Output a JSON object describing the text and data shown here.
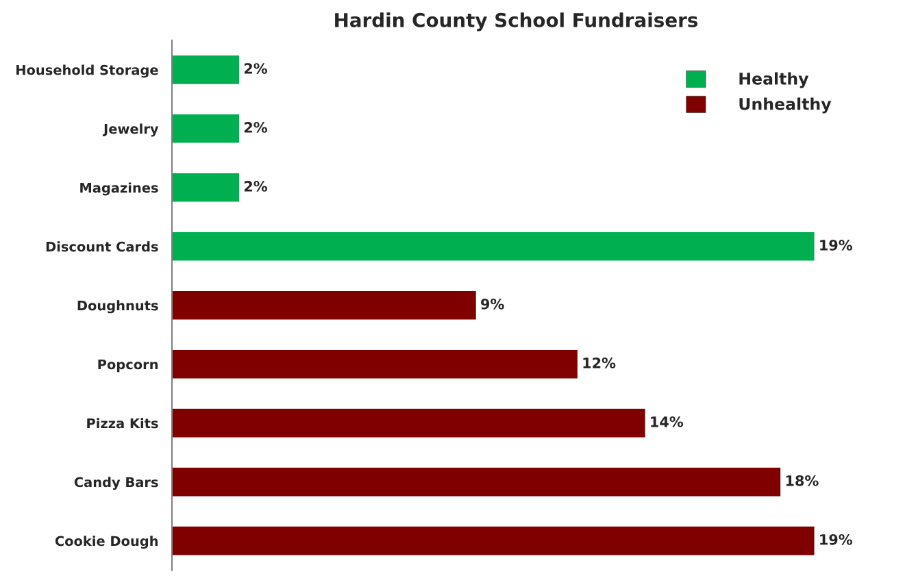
{
  "chart_data": {
    "type": "bar",
    "title": "Hardin County School Fundraisers",
    "orientation": "horizontal",
    "stacked": true,
    "categories": [
      "Household Storage",
      "Jewelry",
      "Magazines",
      "Discount Cards",
      "Doughnuts",
      "Popcorn",
      "Pizza Kits",
      "Candy Bars",
      "Cookie Dough"
    ],
    "series": [
      {
        "name": "Healthy",
        "color": "#00b050",
        "values": [
          2,
          2,
          2,
          19,
          null,
          null,
          null,
          null,
          null
        ],
        "value_labels": [
          "2%",
          "2%",
          "2%",
          "19%",
          null,
          null,
          null,
          null,
          null
        ]
      },
      {
        "name": "Unhealthy",
        "color": "#800000",
        "values": [
          null,
          null,
          null,
          null,
          9,
          12,
          14,
          18,
          19
        ],
        "value_labels": [
          null,
          null,
          null,
          null,
          "9%",
          "12%",
          "14%",
          "18%",
          "19%"
        ]
      }
    ],
    "legend": "top right",
    "grid": false,
    "tick_labels": "y"
  }
}
